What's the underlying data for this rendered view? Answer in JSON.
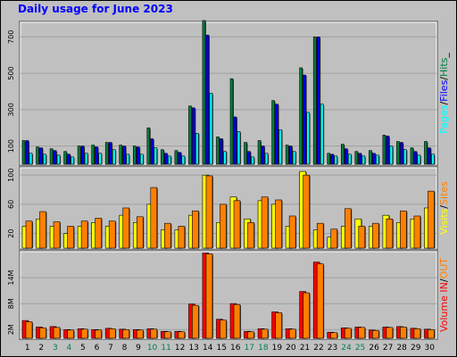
{
  "title": "Daily usage for June 2023",
  "colors": {
    "hits": "#008040",
    "files": "#0000ff",
    "pages": "#00ffff",
    "visits": "#ffff00",
    "sites": "#ff8000",
    "kbin": "#ff0000",
    "kbout": "#ff8000",
    "vol": "#ff0000",
    "weekend": "#00804d",
    "weekday": "#000000"
  },
  "chart_data": [
    {
      "type": "bar",
      "title": "Daily usage for June 2023",
      "categories": [
        "1",
        "2",
        "3",
        "4",
        "5",
        "6",
        "7",
        "8",
        "9",
        "10",
        "11",
        "12",
        "13",
        "14",
        "15",
        "16",
        "17",
        "18",
        "19",
        "20",
        "21",
        "22",
        "23",
        "24",
        "25",
        "26",
        "27",
        "28",
        "29",
        "30"
      ],
      "weekend_days": [
        "3",
        "4",
        "10",
        "11",
        "17",
        "18",
        "24",
        "25"
      ],
      "ylim": [
        0,
        780
      ],
      "ticks": [
        "100",
        "300",
        "500",
        "700"
      ],
      "ylabel_parts": [
        "Pages",
        "/",
        "Files",
        "/",
        "Hits",
        "_"
      ],
      "series": [
        {
          "name": "Hits",
          "values": [
            130,
            95,
            85,
            70,
            100,
            105,
            120,
            105,
            100,
            200,
            80,
            75,
            320,
            790,
            150,
            470,
            120,
            130,
            350,
            105,
            530,
            700,
            60,
            110,
            70,
            75,
            160,
            125,
            90,
            125
          ]
        },
        {
          "name": "Files",
          "values": [
            130,
            90,
            75,
            55,
            100,
            95,
            120,
            100,
            95,
            140,
            60,
            65,
            310,
            710,
            140,
            260,
            70,
            100,
            330,
            100,
            490,
            700,
            55,
            85,
            60,
            60,
            155,
            120,
            70,
            90
          ]
        },
        {
          "name": "Pages",
          "values": [
            60,
            55,
            50,
            40,
            60,
            60,
            80,
            55,
            55,
            90,
            45,
            45,
            170,
            390,
            70,
            180,
            40,
            60,
            190,
            70,
            285,
            330,
            45,
            55,
            45,
            50,
            100,
            80,
            50,
            55
          ]
        }
      ]
    },
    {
      "type": "bar",
      "categories": [
        "1",
        "2",
        "3",
        "4",
        "5",
        "6",
        "7",
        "8",
        "9",
        "10",
        "11",
        "12",
        "13",
        "14",
        "15",
        "16",
        "17",
        "18",
        "19",
        "20",
        "21",
        "22",
        "23",
        "24",
        "25",
        "26",
        "27",
        "28",
        "29",
        "30"
      ],
      "ylim": [
        0,
        110
      ],
      "ticks": [
        "20",
        "60",
        "100"
      ],
      "ylabel_parts": [
        "Visits",
        "/",
        "Sites"
      ],
      "series": [
        {
          "name": "Visits",
          "values": [
            30,
            40,
            30,
            20,
            30,
            35,
            30,
            45,
            35,
            60,
            25,
            25,
            45,
            100,
            35,
            70,
            40,
            65,
            60,
            30,
            105,
            25,
            15,
            30,
            40,
            30,
            45,
            35,
            40,
            55
          ]
        },
        {
          "name": "Sites",
          "values": [
            37,
            50,
            36,
            30,
            37,
            41,
            37,
            55,
            43,
            83,
            34,
            30,
            51,
            99,
            60,
            65,
            35,
            70,
            66,
            44,
            100,
            34,
            26,
            54,
            30,
            34,
            40,
            51,
            44,
            78
          ]
        }
      ]
    },
    {
      "type": "bar",
      "categories": [
        "1",
        "2",
        "3",
        "4",
        "5",
        "6",
        "7",
        "8",
        "9",
        "10",
        "11",
        "12",
        "13",
        "14",
        "15",
        "16",
        "17",
        "18",
        "19",
        "20",
        "21",
        "22",
        "23",
        "24",
        "25",
        "26",
        "27",
        "28",
        "29",
        "30"
      ],
      "ylim": [
        0,
        20000000
      ],
      "ticks": [
        "2M",
        "8M",
        "14M"
      ],
      "ylabel_parts": [
        "Volume",
        "IN",
        "/",
        "OUT"
      ],
      "series": [
        {
          "name": "Volume",
          "values": [
            4100000,
            2600000,
            2700000,
            2000000,
            2200000,
            2000000,
            2300000,
            2100000,
            2000000,
            2200000,
            1600000,
            1600000,
            7900000,
            19700000,
            4400000,
            8000000,
            1600000,
            2200000,
            6100000,
            2200000,
            10800000,
            17600000,
            1400000,
            2400000,
            2600000,
            1900000,
            2600000,
            2700000,
            2300000,
            2100000
          ]
        },
        {
          "name": "IN",
          "values": [
            3800000,
            2400000,
            2500000,
            1900000,
            2100000,
            1900000,
            2200000,
            2000000,
            1900000,
            2100000,
            1500000,
            1500000,
            7600000,
            19500000,
            4200000,
            7800000,
            1500000,
            2100000,
            5900000,
            2100000,
            10500000,
            17200000,
            1300000,
            2300000,
            2500000,
            1800000,
            2500000,
            2600000,
            2200000,
            2000000
          ]
        }
      ]
    }
  ]
}
